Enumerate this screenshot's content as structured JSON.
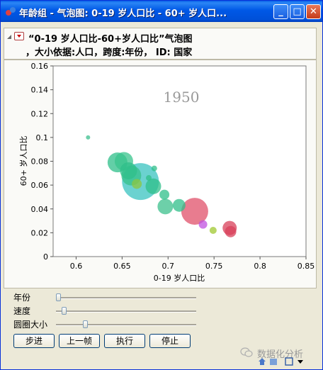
{
  "window": {
    "title": "年龄组 - 气泡图: 0-19 岁人口比 - 60+ 岁人口...",
    "minimize_glyph": "_",
    "maximize_glyph": "□",
    "close_glyph": "✕"
  },
  "header": {
    "line1": "“0-19 岁人口比-60+岁人口比”气泡图",
    "line2": "，大小依据:人口，跨度:年份， ID: 国家"
  },
  "chart_data": {
    "type": "scatter",
    "year_label": "1950",
    "xlabel": "0-19 岁人口比",
    "ylabel": "60+ 岁人口比",
    "xlim": [
      0.575,
      0.85
    ],
    "ylim": [
      0,
      0.16
    ],
    "xticks": [
      "0.6",
      "0.65",
      "0.7",
      "0.75",
      "0.8",
      "0.85"
    ],
    "yticks": [
      "0",
      "0.02",
      "0.04",
      "0.06",
      "0.08",
      "0.1",
      "0.12",
      "0.14",
      "0.16"
    ],
    "points": [
      {
        "x": 0.613,
        "y": 0.1,
        "r": 3,
        "color": "#3cbf8e"
      },
      {
        "x": 0.645,
        "y": 0.079,
        "r": 14,
        "color": "#2fbf8a"
      },
      {
        "x": 0.652,
        "y": 0.08,
        "r": 13,
        "color": "#38c48c"
      },
      {
        "x": 0.657,
        "y": 0.072,
        "r": 12,
        "color": "#2fbf8a"
      },
      {
        "x": 0.66,
        "y": 0.068,
        "r": 14,
        "color": "#36c08a"
      },
      {
        "x": 0.67,
        "y": 0.063,
        "r": 26,
        "color": "#3ac3c0"
      },
      {
        "x": 0.666,
        "y": 0.061,
        "r": 7,
        "color": "#8cc63f"
      },
      {
        "x": 0.684,
        "y": 0.059,
        "r": 11,
        "color": "#2fbf8a"
      },
      {
        "x": 0.679,
        "y": 0.066,
        "r": 4,
        "color": "#2fbf8a"
      },
      {
        "x": 0.685,
        "y": 0.074,
        "r": 4,
        "color": "#2fbf8a"
      },
      {
        "x": 0.696,
        "y": 0.052,
        "r": 7,
        "color": "#2fbf8a"
      },
      {
        "x": 0.697,
        "y": 0.042,
        "r": 11,
        "color": "#3cc08c"
      },
      {
        "x": 0.712,
        "y": 0.043,
        "r": 9,
        "color": "#2fbf8a"
      },
      {
        "x": 0.729,
        "y": 0.038,
        "r": 19,
        "color": "#e0506a"
      },
      {
        "x": 0.738,
        "y": 0.027,
        "r": 6,
        "color": "#c050e0"
      },
      {
        "x": 0.749,
        "y": 0.022,
        "r": 5,
        "color": "#a0c830"
      },
      {
        "x": 0.767,
        "y": 0.024,
        "r": 10,
        "color": "#d8405a"
      },
      {
        "x": 0.768,
        "y": 0.021,
        "r": 8,
        "color": "#d8405a"
      }
    ]
  },
  "controls": {
    "sliders": [
      {
        "label": "年份",
        "value": 0.0
      },
      {
        "label": "速度",
        "value": 0.04
      },
      {
        "label": "圆圈大小",
        "value": 0.2
      }
    ],
    "buttons": [
      "步进",
      "上一帧",
      "执行",
      "停止"
    ]
  },
  "watermark": "数据化分析"
}
